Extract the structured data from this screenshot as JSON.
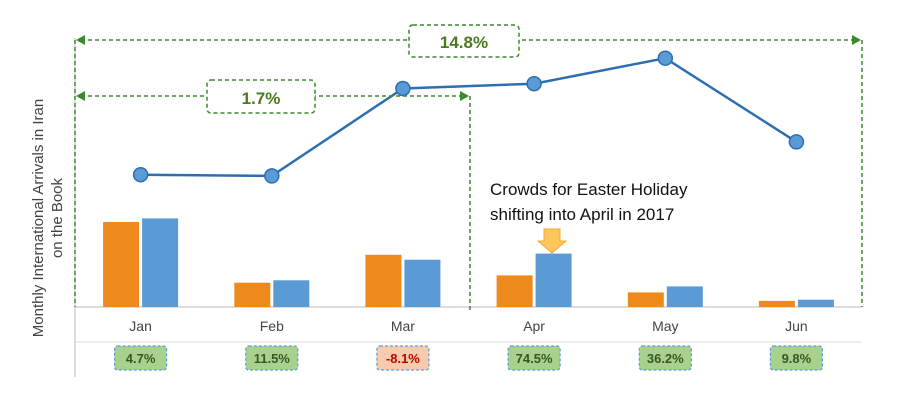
{
  "chart_data": {
    "type": "bar",
    "ylabel_lines": [
      "Monthly International Arrivals in Iran",
      "on the Book"
    ],
    "categories": [
      "Jan",
      "Feb",
      "Mar",
      "Apr",
      "May",
      "Jun"
    ],
    "series": [
      {
        "kind": "bar",
        "color": "#ee8a1c",
        "values": [
          70,
          20,
          43,
          26,
          12,
          5
        ]
      },
      {
        "kind": "bar",
        "color": "#5b9bd5",
        "values": [
          73,
          22,
          39,
          44,
          17,
          6
        ]
      },
      {
        "kind": "line",
        "color": "#2e6eb0",
        "values": [
          109,
          108,
          180,
          184,
          205,
          136
        ]
      }
    ],
    "ylim": [
      0,
      220
    ],
    "growth_labels": [
      "4.7%",
      "11.5%",
      "-8.1%",
      "74.5%",
      "36.2%",
      "9.8%"
    ],
    "growth_colors": {
      "positive_fill": "#a9d18e",
      "positive_text": "#385723",
      "negative_fill": "#f8cbad",
      "negative_text": "#c00000"
    },
    "annotation_lines": [
      "Crowds for Easter Holiday",
      "shifting into April in 2017"
    ],
    "spans": [
      {
        "label": "14.8%",
        "from": "Jan",
        "to": "Jun"
      },
      {
        "label": "1.7%",
        "from": "Jan",
        "to": "Mar"
      }
    ]
  }
}
